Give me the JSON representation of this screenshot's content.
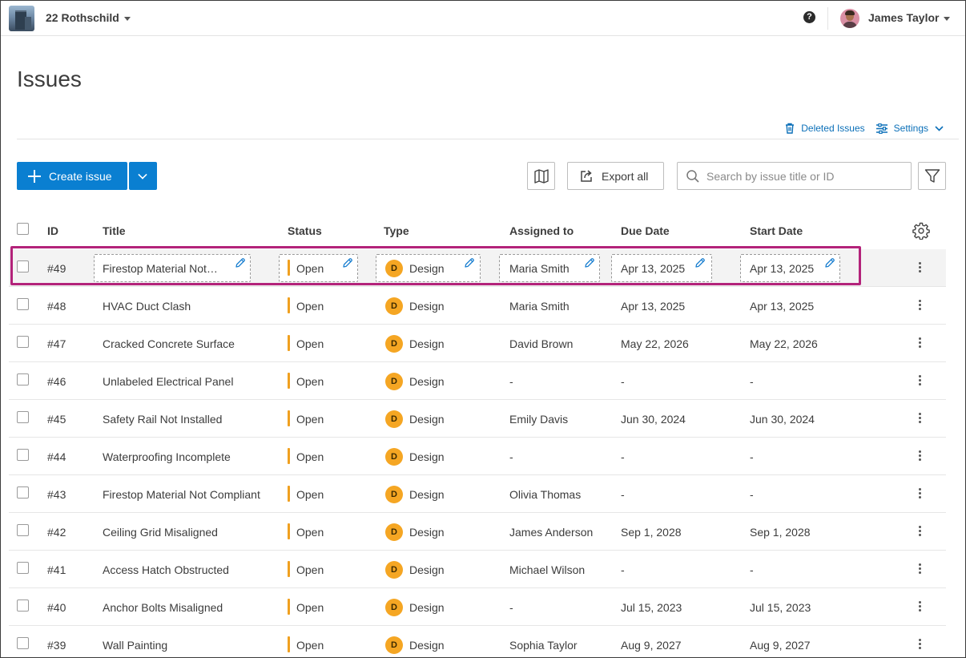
{
  "topbar": {
    "project_name": "22 Rothschild",
    "help_icon": "question-circle-icon",
    "help_glyph": "?",
    "user_name": "James Taylor"
  },
  "page": {
    "title": "Issues",
    "deleted_issues_label": "Deleted Issues",
    "settings_label": "Settings"
  },
  "toolbar": {
    "create_label": "Create issue",
    "export_label": "Export all",
    "search_placeholder": "Search by issue title or ID"
  },
  "colors": {
    "primary": "#0a7fd1",
    "link": "#0a6fb8",
    "status_open": "#f0a020",
    "type_design": "#f5a623",
    "selection": "#b3237a"
  },
  "table": {
    "headers": {
      "id": "ID",
      "title": "Title",
      "status": "Status",
      "type": "Type",
      "assigned": "Assigned to",
      "due": "Due Date",
      "start": "Start Date"
    },
    "rows": [
      {
        "id": "#49",
        "title": "Firestop Material Not…",
        "status": "Open",
        "type_initial": "D",
        "type": "Design",
        "assigned": "Maria Smith",
        "due": "Apr 13, 2025",
        "start": "Apr 13, 2025"
      },
      {
        "id": "#48",
        "title": "HVAC Duct Clash",
        "status": "Open",
        "type_initial": "D",
        "type": "Design",
        "assigned": "Maria Smith",
        "due": "Apr 13, 2025",
        "start": "Apr 13, 2025"
      },
      {
        "id": "#47",
        "title": "Cracked Concrete Surface",
        "status": "Open",
        "type_initial": "D",
        "type": "Design",
        "assigned": "David Brown",
        "due": "May 22, 2026",
        "start": "May 22, 2026"
      },
      {
        "id": "#46",
        "title": "Unlabeled Electrical Panel",
        "status": "Open",
        "type_initial": "D",
        "type": "Design",
        "assigned": "-",
        "due": "-",
        "start": "-"
      },
      {
        "id": "#45",
        "title": "Safety Rail Not Installed",
        "status": "Open",
        "type_initial": "D",
        "type": "Design",
        "assigned": "Emily Davis",
        "due": "Jun 30, 2024",
        "start": "Jun 30, 2024"
      },
      {
        "id": "#44",
        "title": "Waterproofing Incomplete",
        "status": "Open",
        "type_initial": "D",
        "type": "Design",
        "assigned": "-",
        "due": "-",
        "start": "-"
      },
      {
        "id": "#43",
        "title": "Firestop Material Not Compliant",
        "status": "Open",
        "type_initial": "D",
        "type": "Design",
        "assigned": "Olivia Thomas",
        "due": "-",
        "start": "-"
      },
      {
        "id": "#42",
        "title": "Ceiling Grid Misaligned",
        "status": "Open",
        "type_initial": "D",
        "type": "Design",
        "assigned": "James Anderson",
        "due": "Sep 1, 2028",
        "start": "Sep 1, 2028"
      },
      {
        "id": "#41",
        "title": "Access Hatch Obstructed",
        "status": "Open",
        "type_initial": "D",
        "type": "Design",
        "assigned": "Michael Wilson",
        "due": "-",
        "start": "-"
      },
      {
        "id": "#40",
        "title": "Anchor Bolts Misaligned",
        "status": "Open",
        "type_initial": "D",
        "type": "Design",
        "assigned": "-",
        "due": "Jul 15, 2023",
        "start": "Jul 15, 2023"
      },
      {
        "id": "#39",
        "title": "Wall Painting",
        "status": "Open",
        "type_initial": "D",
        "type": "Design",
        "assigned": "Sophia Taylor",
        "due": "Aug 9, 2027",
        "start": "Aug 9, 2027"
      }
    ]
  }
}
